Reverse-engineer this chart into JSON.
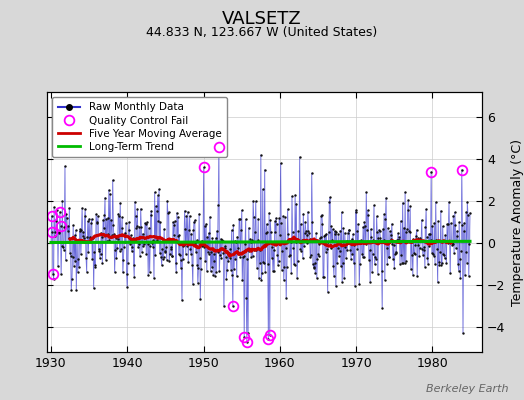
{
  "title": "VALSETZ",
  "subtitle": "44.833 N, 123.667 W (United States)",
  "ylabel": "Temperature Anomaly (°C)",
  "attribution": "Berkeley Earth",
  "xlim": [
    1929.5,
    1986.5
  ],
  "ylim": [
    -5.2,
    7.2
  ],
  "yticks": [
    -4,
    -2,
    0,
    2,
    4,
    6
  ],
  "xticks": [
    1930,
    1940,
    1950,
    1960,
    1970,
    1980
  ],
  "year_start": 1930,
  "year_end": 1985,
  "fig_bg_color": "#d8d8d8",
  "plot_bg_color": "#ffffff",
  "raw_line_color": "#3333cc",
  "raw_dot_color": "#111111",
  "qc_fail_color": "#ff00ff",
  "moving_avg_color": "#cc0000",
  "trend_color": "#00bb00",
  "seed": 12345,
  "moving_avg_window": 60
}
